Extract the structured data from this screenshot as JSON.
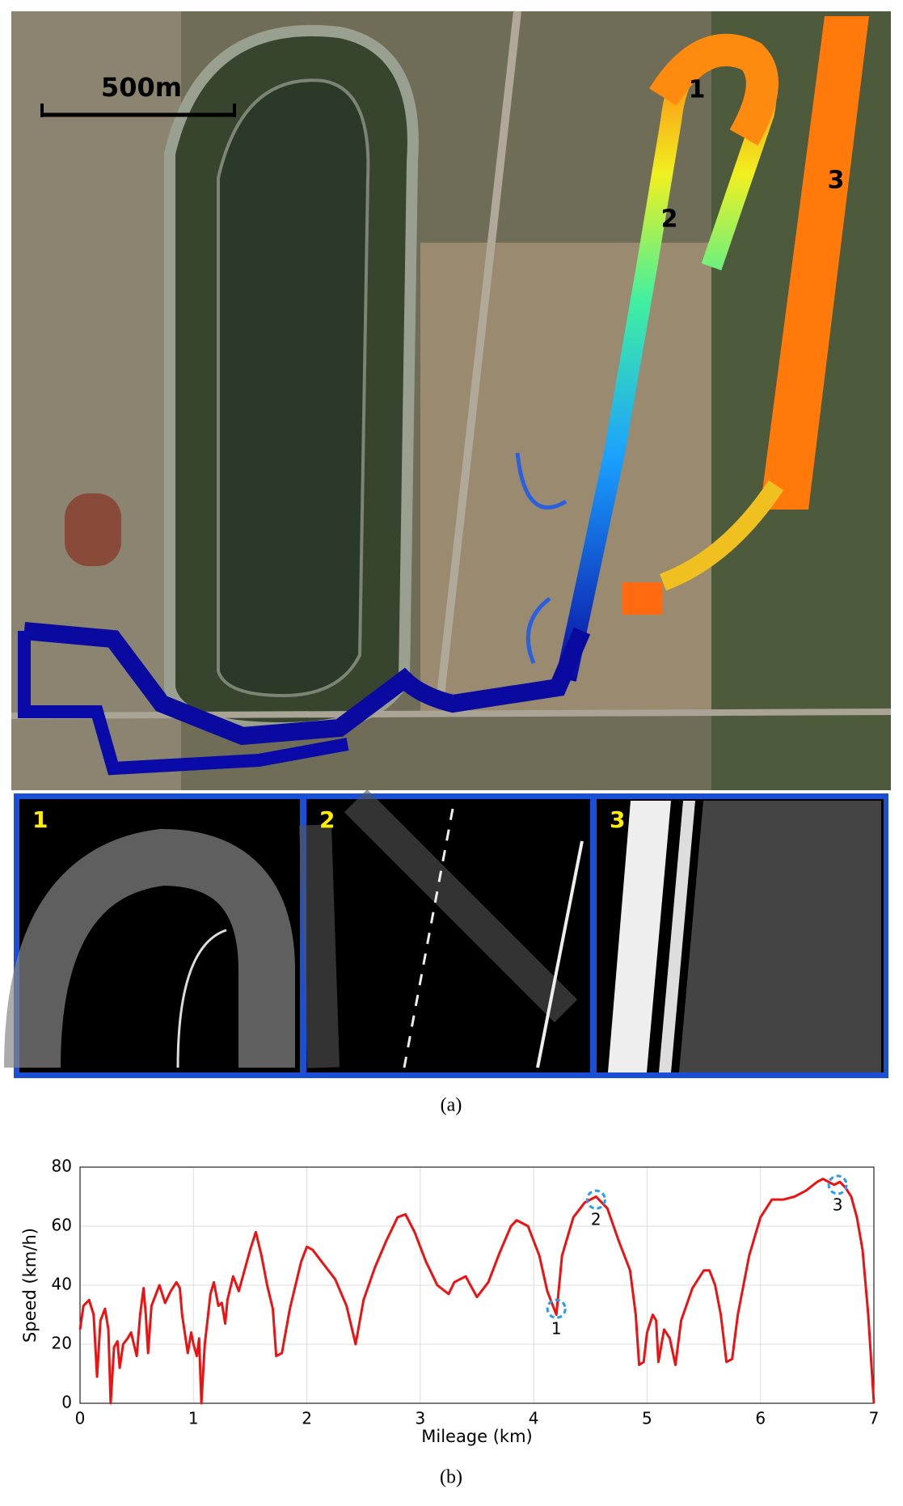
{
  "panel_a": {
    "scale_bar": "500m",
    "map_labels": [
      "1",
      "2",
      "3"
    ],
    "inset_labels": [
      "1",
      "2",
      "3"
    ],
    "caption": "(a)"
  },
  "chart_data": {
    "type": "line",
    "xlabel": "Mileage (km)",
    "ylabel": "Speed (km/h)",
    "xlim": [
      0,
      7
    ],
    "xticks": [
      0,
      1,
      2,
      3,
      4,
      5,
      6,
      7
    ],
    "ylim": [
      0,
      80
    ],
    "yticks": [
      0,
      20,
      40,
      60,
      80
    ],
    "grid": true,
    "series": [
      {
        "color": "#ee1111",
        "x": [
          0,
          0.03,
          0.08,
          0.12,
          0.15,
          0.18,
          0.22,
          0.25,
          0.27,
          0.3,
          0.33,
          0.35,
          0.38,
          0.42,
          0.45,
          0.5,
          0.53,
          0.56,
          0.58,
          0.6,
          0.63,
          0.67,
          0.7,
          0.75,
          0.8,
          0.85,
          0.88,
          0.9,
          0.95,
          0.98,
          1.0,
          1.03,
          1.05,
          1.07,
          1.1,
          1.15,
          1.18,
          1.22,
          1.25,
          1.28,
          1.3,
          1.35,
          1.4,
          1.45,
          1.5,
          1.55,
          1.6,
          1.65,
          1.7,
          1.73,
          1.78,
          1.85,
          1.9,
          1.95,
          2.0,
          2.05,
          2.15,
          2.25,
          2.35,
          2.43,
          2.5,
          2.6,
          2.7,
          2.8,
          2.87,
          2.95,
          3.05,
          3.15,
          3.25,
          3.3,
          3.4,
          3.5,
          3.6,
          3.7,
          3.8,
          3.85,
          3.95,
          4.05,
          4.12,
          4.18,
          4.2,
          4.25,
          4.35,
          4.45,
          4.55,
          4.65,
          4.75,
          4.85,
          4.9,
          4.93,
          4.97,
          5.0,
          5.05,
          5.08,
          5.1,
          5.15,
          5.2,
          5.25,
          5.3,
          5.4,
          5.5,
          5.55,
          5.6,
          5.65,
          5.7,
          5.75,
          5.8,
          5.9,
          6.0,
          6.1,
          6.2,
          6.3,
          6.4,
          6.5,
          6.55,
          6.6,
          6.65,
          6.7,
          6.75,
          6.8,
          6.85,
          6.9,
          6.95,
          7.0
        ],
        "values": [
          25,
          33,
          35,
          30,
          9,
          28,
          32,
          25,
          0,
          19,
          21,
          12,
          20,
          22,
          24,
          16,
          30,
          39,
          30,
          17,
          33,
          37,
          40,
          34,
          38,
          41,
          39,
          30,
          17,
          24,
          20,
          16,
          22,
          0,
          20,
          37,
          41,
          33,
          34,
          27,
          35,
          43,
          38,
          45,
          52,
          58,
          50,
          40,
          32,
          16,
          17,
          32,
          40,
          48,
          53,
          52,
          47,
          42,
          33,
          20,
          35,
          46,
          55,
          63,
          64,
          58,
          48,
          40,
          37,
          41,
          43,
          36,
          41,
          51,
          60,
          62,
          60,
          50,
          38,
          32,
          30,
          50,
          63,
          68,
          70,
          66,
          55,
          45,
          30,
          13,
          14,
          24,
          30,
          28,
          14,
          25,
          22,
          13,
          28,
          39,
          45,
          45,
          40,
          30,
          14,
          15,
          30,
          50,
          63,
          69,
          69,
          70,
          72,
          75,
          76,
          75,
          74,
          75,
          73,
          70,
          63,
          52,
          30,
          0
        ]
      }
    ],
    "annotations": [
      {
        "label": "1",
        "x": 4.2,
        "y": 32
      },
      {
        "label": "2",
        "x": 4.55,
        "y": 69
      },
      {
        "label": "3",
        "x": 6.68,
        "y": 74
      }
    ]
  },
  "panel_b": {
    "caption": "(b)"
  }
}
